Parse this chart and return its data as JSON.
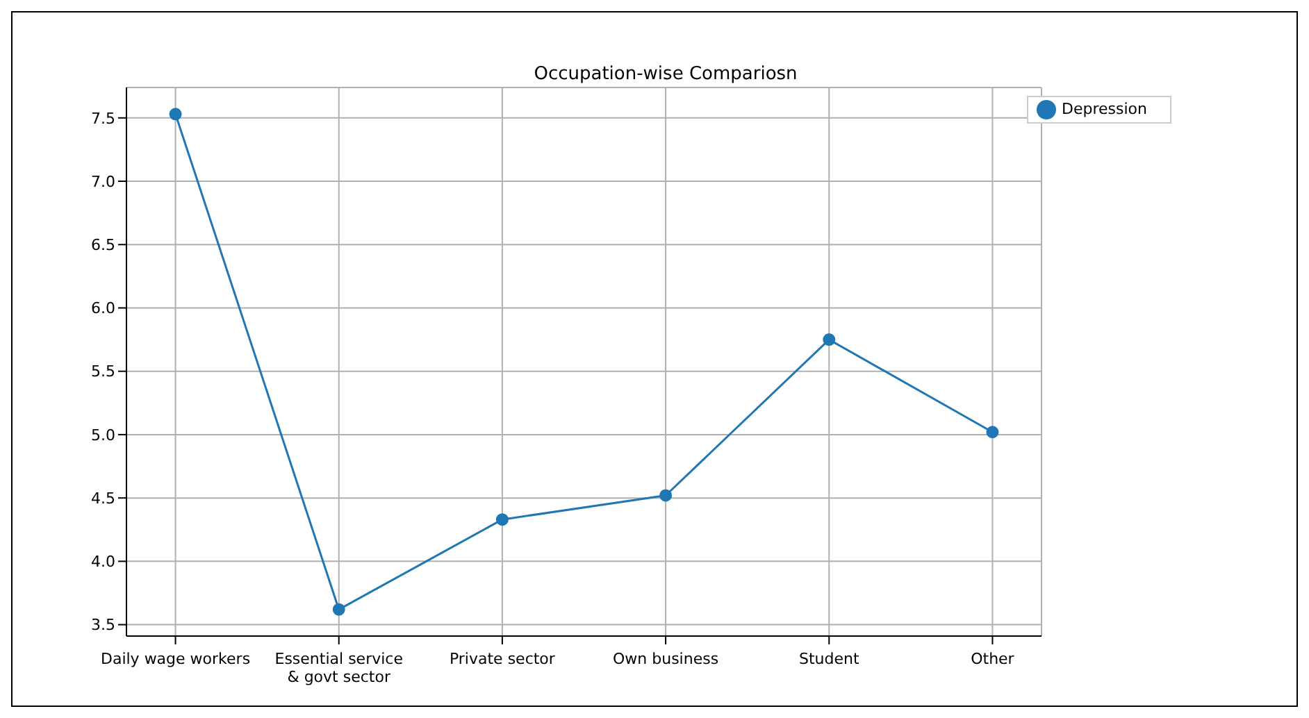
{
  "chart_data": {
    "type": "line",
    "title": "Occupation-wise Compariosn",
    "categories": [
      "Daily wage workers",
      "Essential service & govt sector",
      "Private sector",
      "Own business",
      "Student",
      "Other"
    ],
    "series": [
      {
        "name": "Depression",
        "color": "#1f77b4",
        "values": [
          7.53,
          3.62,
          4.33,
          4.52,
          5.75,
          5.02
        ]
      }
    ],
    "ylim": [
      3.41,
      7.74
    ],
    "yticks": [
      3.5,
      {
        "value": 4,
        "label": "4.0"
      },
      4.5,
      {
        "value": 5,
        "label": "5.0"
      },
      5.5,
      {
        "value": 6,
        "label": "6.0"
      },
      6.5,
      {
        "value": 7,
        "label": "7.0"
      },
      7.5
    ],
    "grid": true,
    "legend": "top right",
    "marker": "circle",
    "line_style": "solid"
  }
}
